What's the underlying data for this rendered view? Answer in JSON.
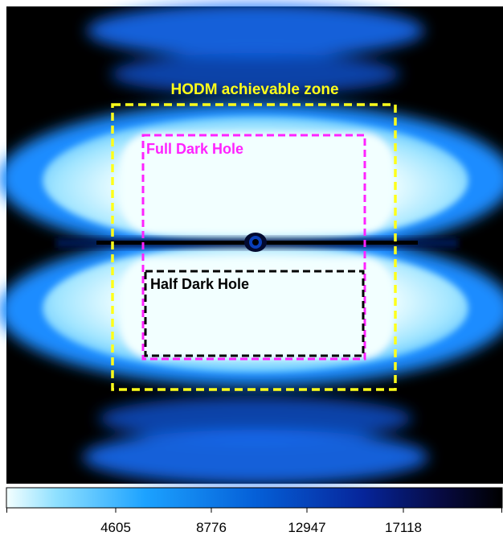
{
  "zones": {
    "hodm_label": "HODM achievable zone",
    "full_dark_hole_label": "Full Dark Hole",
    "half_dark_hole_label": "Half Dark Hole"
  },
  "colors": {
    "background": "#000000",
    "hodm_zone": "#ffff1a",
    "full_dark_hole": "#ff22ff",
    "half_dark_hole": "#000000",
    "colormap": [
      "#f4ffff",
      "#4fc8ff",
      "#0b84ff",
      "#0538b0",
      "#0a0a40",
      "#000000"
    ]
  },
  "colorbar": {
    "ticks": [
      "4605",
      "8776",
      "12947",
      "17118"
    ]
  },
  "chart_data": {
    "type": "heatmap",
    "colorbar_ticks": [
      4605,
      8776,
      12947,
      17118
    ],
    "colormap": "white to light blue to dark blue to black (low to high)"
  }
}
